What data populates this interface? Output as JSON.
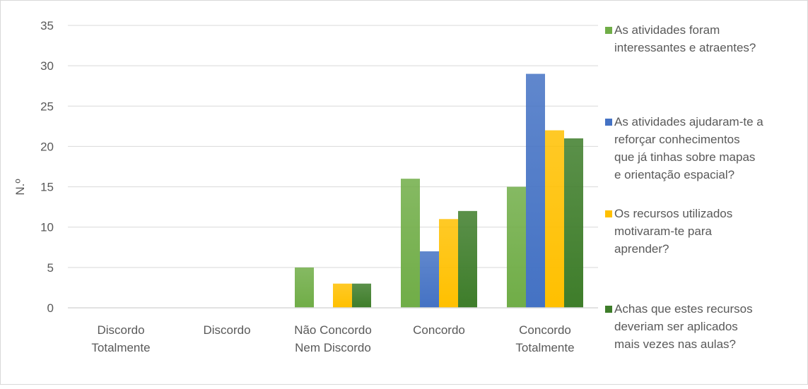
{
  "chart_data": {
    "type": "bar",
    "title": "",
    "xlabel": "",
    "ylabel": "N.º",
    "ylim": [
      0,
      35
    ],
    "yticks": [
      0,
      5,
      10,
      15,
      20,
      25,
      30,
      35
    ],
    "grid": true,
    "legend_position": "right",
    "categories": [
      [
        "Discordo",
        "Totalmente"
      ],
      [
        "Discordo"
      ],
      [
        "Não Concordo",
        "Nem Discordo"
      ],
      [
        "Concordo"
      ],
      [
        "Concordo",
        "Totalmente"
      ]
    ],
    "series": [
      {
        "name": "As atividades foram interessantes e atraentes?",
        "legend_lines": [
          "As atividades foram",
          "interessantes e atraentes?"
        ],
        "color": "#70ad47",
        "values": [
          0,
          0,
          5,
          16,
          15
        ]
      },
      {
        "name": "As atividades ajudaram-te a reforçar conhecimentos que já tinhas sobre mapas e orientação espacial?",
        "legend_lines": [
          "As atividades ajudaram-te a",
          "reforçar conhecimentos",
          "que já tinhas sobre mapas",
          "e orientação espacial?"
        ],
        "color": "#4472c4",
        "values": [
          0,
          0,
          0,
          7,
          29
        ]
      },
      {
        "name": "Os recursos utilizados motivaram-te para aprender?",
        "legend_lines": [
          "Os recursos utilizados",
          "motivaram-te para",
          "aprender?"
        ],
        "color": "#ffc000",
        "values": [
          0,
          0,
          3,
          11,
          22
        ]
      },
      {
        "name": "Achas que estes recursos deveriam ser aplicados mais vezes nas aulas?",
        "legend_lines": [
          "Achas que estes recursos",
          "deveriam ser aplicados",
          "mais vezes nas aulas?"
        ],
        "color": "#3e7d2a",
        "values": [
          0,
          0,
          3,
          12,
          21
        ]
      }
    ]
  }
}
